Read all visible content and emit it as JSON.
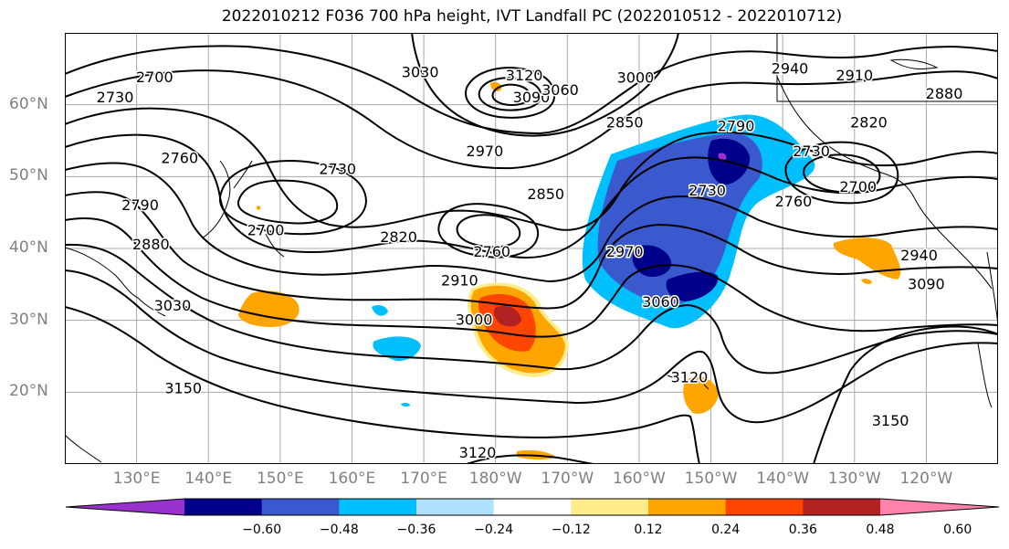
{
  "title": "2022010212 F036 700 hPa height, IVT Landfall PC (2022010512 - 2022010712)",
  "map": {
    "lon_range": [
      120,
      250
    ],
    "lat_range": [
      10,
      70
    ],
    "lat_ticks": [
      {
        "lat": 60,
        "label": "60°N"
      },
      {
        "lat": 50,
        "label": "50°N"
      },
      {
        "lat": 40,
        "label": "40°N"
      },
      {
        "lat": 30,
        "label": "30°N"
      },
      {
        "lat": 20,
        "label": "20°N"
      }
    ],
    "lon_ticks": [
      {
        "lon": 130,
        "label": "130°E"
      },
      {
        "lon": 140,
        "label": "140°E"
      },
      {
        "lon": 150,
        "label": "150°E"
      },
      {
        "lon": 160,
        "label": "160°E"
      },
      {
        "lon": 170,
        "label": "170°E"
      },
      {
        "lon": 180,
        "label": "180°W"
      },
      {
        "lon": 190,
        "label": "170°W"
      },
      {
        "lon": 200,
        "label": "160°W"
      },
      {
        "lon": 210,
        "label": "150°W"
      },
      {
        "lon": 220,
        "label": "140°W"
      },
      {
        "lon": 230,
        "label": "130°W"
      },
      {
        "lon": 240,
        "label": "120°W"
      }
    ],
    "grid": true
  },
  "contour_labels": [
    {
      "text": "2700",
      "lon": 132.5,
      "lat": 63.8
    },
    {
      "text": "2730",
      "lon": 127,
      "lat": 61
    },
    {
      "text": "2760",
      "lon": 136,
      "lat": 52.5
    },
    {
      "text": "2790",
      "lon": 130.5,
      "lat": 46
    },
    {
      "text": "2880",
      "lon": 132,
      "lat": 40.5
    },
    {
      "text": "3030",
      "lon": 135,
      "lat": 32
    },
    {
      "text": "2730",
      "lon": 158,
      "lat": 51
    },
    {
      "text": "2700",
      "lon": 148,
      "lat": 42.5
    },
    {
      "text": "2820",
      "lon": 166.5,
      "lat": 41.5
    },
    {
      "text": "2760",
      "lon": 179.5,
      "lat": 39.5
    },
    {
      "text": "2850",
      "lon": 187,
      "lat": 47.5
    },
    {
      "text": "2910",
      "lon": 175,
      "lat": 35.5
    },
    {
      "text": "3000",
      "lon": 177,
      "lat": 30
    },
    {
      "text": "3150",
      "lon": 136.5,
      "lat": 20.5
    },
    {
      "text": "3030",
      "lon": 169.5,
      "lat": 64.5
    },
    {
      "text": "3120",
      "lon": 184,
      "lat": 64
    },
    {
      "text": "3090",
      "lon": 185,
      "lat": 61
    },
    {
      "text": "3060",
      "lon": 189,
      "lat": 62
    },
    {
      "text": "3000",
      "lon": 199.5,
      "lat": 63.7
    },
    {
      "text": "2970",
      "lon": 178.5,
      "lat": 53.5
    },
    {
      "text": "2850",
      "lon": 198,
      "lat": 57.5
    },
    {
      "text": "2790",
      "lon": 213.5,
      "lat": 57
    },
    {
      "text": "2940",
      "lon": 221,
      "lat": 65
    },
    {
      "text": "2910",
      "lon": 230,
      "lat": 64
    },
    {
      "text": "2880",
      "lon": 242.5,
      "lat": 61.5
    },
    {
      "text": "2820",
      "lon": 232,
      "lat": 57.5
    },
    {
      "text": "2730",
      "lon": 224,
      "lat": 53.5
    },
    {
      "text": "2730",
      "lon": 209.5,
      "lat": 48
    },
    {
      "text": "2760",
      "lon": 221.5,
      "lat": 46.5
    },
    {
      "text": "2700",
      "lon": 230.5,
      "lat": 48.5
    },
    {
      "text": "2970",
      "lon": 198,
      "lat": 39.5
    },
    {
      "text": "3060",
      "lon": 203,
      "lat": 32.5
    },
    {
      "text": "2940",
      "lon": 239,
      "lat": 39
    },
    {
      "text": "3090",
      "lon": 240,
      "lat": 35
    },
    {
      "text": "3120",
      "lon": 207,
      "lat": 22
    },
    {
      "text": "3150",
      "lon": 235,
      "lat": 16
    },
    {
      "text": "3120",
      "lon": 177.5,
      "lat": 11.5
    }
  ],
  "colorbar": {
    "colors": [
      "#9932CC",
      "#00008B",
      "#3A59CE",
      "#00BFFF",
      "#B0E2FF",
      "#FFFFFF",
      "#FFEC8B",
      "#FFA500",
      "#FF4500",
      "#B22222",
      "#FF82AB"
    ],
    "ticks": [
      "−0.60",
      "−0.48",
      "−0.36",
      "−0.24",
      "−0.12",
      "0.12",
      "0.24",
      "0.36",
      "0.48",
      "0.60"
    ]
  }
}
